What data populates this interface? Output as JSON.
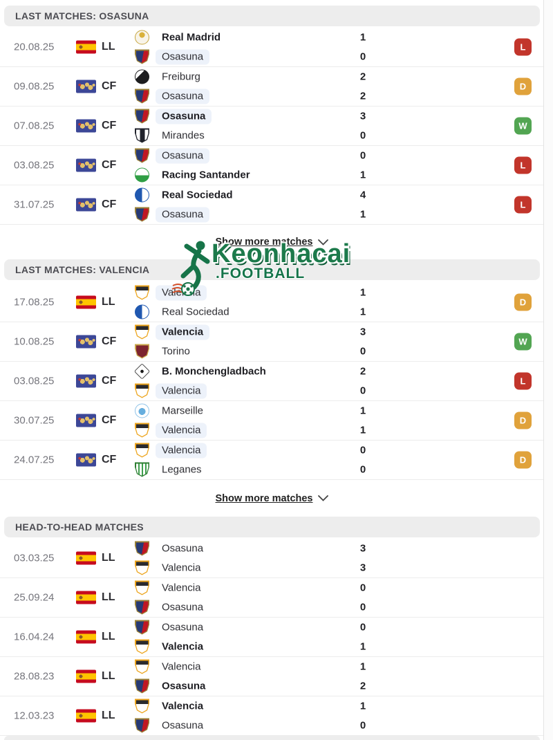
{
  "show_more_label": "Show more matches",
  "watermark": {
    "brand": "Keonhacai",
    "suffix": ".FOOTBALL"
  },
  "badge_colors": {
    "W": "#52a552",
    "D": "#e0a23b",
    "L": "#c2352b"
  },
  "highlight_color": "#edf2fa",
  "logos": {
    "real-madrid": {
      "shape": "circle",
      "bg": "radial-gradient(circle at 50% 32%, #d9b13b 0 4px, #f8f4e9 4px)",
      "border": "#c7a63f"
    },
    "osasuna": {
      "shape": "shield",
      "bg": "linear-gradient(100deg, #273a74 0 52%, #bf1723 52%)",
      "border": "#9a8136"
    },
    "freiburg": {
      "shape": "circle",
      "bg": "linear-gradient(135deg, #ffffff 0 35%, #1d1d1f 35%)",
      "border": "#1d1d1f"
    },
    "mirandes": {
      "shape": "shield",
      "bg": "linear-gradient(90deg, #ffffff 0 30%, #20222b 30% 70%, #ffffff 70%)",
      "border": "#20222b"
    },
    "racing-santander": {
      "shape": "circle",
      "bg": "linear-gradient(180deg, #ffffff 0 52%, #2f9e44 52%)",
      "border": "#2f9e44"
    },
    "real-sociedad": {
      "shape": "circle",
      "bg": "linear-gradient(90deg, #2058b0 0 50%, #ffffff 50%)",
      "border": "#2058b0"
    },
    "valencia": {
      "shape": "shield",
      "bg": "linear-gradient(180deg, #2a2a2e 0 30%, #ffffff 30%)",
      "border": "#eda51d"
    },
    "torino": {
      "shape": "shield",
      "bg": "#7d2430",
      "border": "#caa84c"
    },
    "monchengladbach": {
      "shape": "diamond",
      "bg": "radial-gradient(circle at 50% 50%, #1a1a1a 0 3px, #ffffff 3px)",
      "border": "#1a1a1a"
    },
    "marseille": {
      "shape": "circle",
      "bg": "radial-gradient(circle at 50% 55%, #66aede 0 5px, #ffffff 5px)",
      "border": "#8fc3e8"
    },
    "leganes": {
      "shape": "shield",
      "bg": "repeating-linear-gradient(90deg, #ffffff 0 3px, #3f9e4d 3px 5px)",
      "border": "#2e7d32"
    }
  },
  "sections": [
    {
      "title": "LAST MATCHES: OSASUNA",
      "show_more": true,
      "rows": [
        {
          "date": "20.08.25",
          "flag": "spain",
          "comp": "LL",
          "result": "L",
          "teams": [
            {
              "logo": "real-madrid",
              "name": "Real Madrid",
              "bold": true,
              "highlight": false,
              "score": "1"
            },
            {
              "logo": "osasuna",
              "name": "Osasuna",
              "bold": false,
              "highlight": true,
              "score": "0"
            }
          ]
        },
        {
          "date": "09.08.25",
          "flag": "world",
          "comp": "CF",
          "result": "D",
          "teams": [
            {
              "logo": "freiburg",
              "name": "Freiburg",
              "bold": false,
              "highlight": false,
              "score": "2"
            },
            {
              "logo": "osasuna",
              "name": "Osasuna",
              "bold": false,
              "highlight": true,
              "score": "2"
            }
          ]
        },
        {
          "date": "07.08.25",
          "flag": "world",
          "comp": "CF",
          "result": "W",
          "teams": [
            {
              "logo": "osasuna",
              "name": "Osasuna",
              "bold": true,
              "highlight": true,
              "score": "3"
            },
            {
              "logo": "mirandes",
              "name": "Mirandes",
              "bold": false,
              "highlight": false,
              "score": "0"
            }
          ]
        },
        {
          "date": "03.08.25",
          "flag": "world",
          "comp": "CF",
          "result": "L",
          "teams": [
            {
              "logo": "osasuna",
              "name": "Osasuna",
              "bold": false,
              "highlight": true,
              "score": "0"
            },
            {
              "logo": "racing-santander",
              "name": "Racing Santander",
              "bold": true,
              "highlight": false,
              "score": "1"
            }
          ]
        },
        {
          "date": "31.07.25",
          "flag": "world",
          "comp": "CF",
          "result": "L",
          "teams": [
            {
              "logo": "real-sociedad",
              "name": "Real Sociedad",
              "bold": true,
              "highlight": false,
              "score": "4"
            },
            {
              "logo": "osasuna",
              "name": "Osasuna",
              "bold": false,
              "highlight": true,
              "score": "1"
            }
          ]
        }
      ]
    },
    {
      "title": "LAST MATCHES: VALENCIA",
      "show_more": true,
      "rows": [
        {
          "date": "17.08.25",
          "flag": "spain",
          "comp": "LL",
          "result": "D",
          "teams": [
            {
              "logo": "valencia",
              "name": "Valencia",
              "bold": false,
              "highlight": true,
              "score": "1"
            },
            {
              "logo": "real-sociedad",
              "name": "Real Sociedad",
              "bold": false,
              "highlight": false,
              "score": "1"
            }
          ]
        },
        {
          "date": "10.08.25",
          "flag": "world",
          "comp": "CF",
          "result": "W",
          "teams": [
            {
              "logo": "valencia",
              "name": "Valencia",
              "bold": true,
              "highlight": true,
              "score": "3"
            },
            {
              "logo": "torino",
              "name": "Torino",
              "bold": false,
              "highlight": false,
              "score": "0"
            }
          ]
        },
        {
          "date": "03.08.25",
          "flag": "world",
          "comp": "CF",
          "result": "L",
          "teams": [
            {
              "logo": "monchengladbach",
              "name": "B. Monchengladbach",
              "bold": true,
              "highlight": false,
              "score": "2"
            },
            {
              "logo": "valencia",
              "name": "Valencia",
              "bold": false,
              "highlight": true,
              "score": "0"
            }
          ]
        },
        {
          "date": "30.07.25",
          "flag": "world",
          "comp": "CF",
          "result": "D",
          "teams": [
            {
              "logo": "marseille",
              "name": "Marseille",
              "bold": false,
              "highlight": false,
              "score": "1"
            },
            {
              "logo": "valencia",
              "name": "Valencia",
              "bold": false,
              "highlight": true,
              "score": "1"
            }
          ]
        },
        {
          "date": "24.07.25",
          "flag": "world",
          "comp": "CF",
          "result": "D",
          "teams": [
            {
              "logo": "valencia",
              "name": "Valencia",
              "bold": false,
              "highlight": true,
              "score": "0"
            },
            {
              "logo": "leganes",
              "name": "Leganes",
              "bold": false,
              "highlight": false,
              "score": "0"
            }
          ]
        }
      ]
    },
    {
      "title": "HEAD-TO-HEAD MATCHES",
      "show_more": false,
      "rows": [
        {
          "date": "03.03.25",
          "flag": "spain",
          "comp": "LL",
          "result": null,
          "teams": [
            {
              "logo": "osasuna",
              "name": "Osasuna",
              "bold": false,
              "highlight": false,
              "score": "3"
            },
            {
              "logo": "valencia",
              "name": "Valencia",
              "bold": false,
              "highlight": false,
              "score": "3"
            }
          ]
        },
        {
          "date": "25.09.24",
          "flag": "spain",
          "comp": "LL",
          "result": null,
          "teams": [
            {
              "logo": "valencia",
              "name": "Valencia",
              "bold": false,
              "highlight": false,
              "score": "0"
            },
            {
              "logo": "osasuna",
              "name": "Osasuna",
              "bold": false,
              "highlight": false,
              "score": "0"
            }
          ]
        },
        {
          "date": "16.04.24",
          "flag": "spain",
          "comp": "LL",
          "result": null,
          "teams": [
            {
              "logo": "osasuna",
              "name": "Osasuna",
              "bold": false,
              "highlight": false,
              "score": "0"
            },
            {
              "logo": "valencia",
              "name": "Valencia",
              "bold": true,
              "highlight": false,
              "score": "1"
            }
          ]
        },
        {
          "date": "28.08.23",
          "flag": "spain",
          "comp": "LL",
          "result": null,
          "teams": [
            {
              "logo": "valencia",
              "name": "Valencia",
              "bold": false,
              "highlight": false,
              "score": "1"
            },
            {
              "logo": "osasuna",
              "name": "Osasuna",
              "bold": true,
              "highlight": false,
              "score": "2"
            }
          ]
        },
        {
          "date": "12.03.23",
          "flag": "spain",
          "comp": "LL",
          "result": null,
          "teams": [
            {
              "logo": "valencia",
              "name": "Valencia",
              "bold": true,
              "highlight": false,
              "score": "1"
            },
            {
              "logo": "osasuna",
              "name": "Osasuna",
              "bold": false,
              "highlight": false,
              "score": "0"
            }
          ]
        }
      ]
    }
  ]
}
